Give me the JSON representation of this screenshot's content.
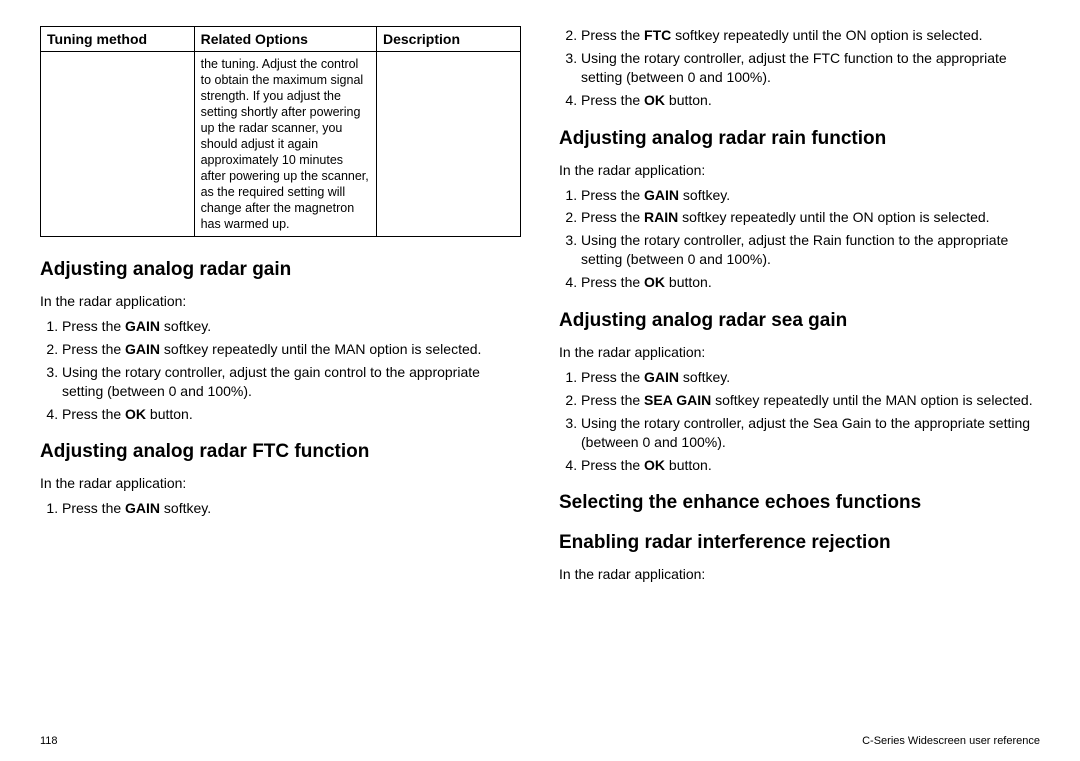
{
  "table": {
    "headers": [
      "Tuning method",
      "Related Options",
      "Description"
    ],
    "row": {
      "tuning": "",
      "options": "the tuning. Adjust the control to obtain the maximum signal strength. If you adjust the setting shortly after powering up the radar scanner, you should adjust it again approximately 10 minutes after powering up the scanner, as the required setting will change after the magnetron has warmed up.",
      "desc": ""
    }
  },
  "left": {
    "h_gain": "Adjusting analog radar gain",
    "gain_lead": "In the radar application:",
    "gain_steps": {
      "s1a": "Press the ",
      "s1b": "GAIN",
      "s1c": " softkey.",
      "s2a": "Press the ",
      "s2b": "GAIN",
      "s2c": " softkey repeatedly until the MAN option is selected.",
      "s3": "Using the rotary controller, adjust the gain control to the appropriate setting (between 0 and 100%).",
      "s4a": "Press the ",
      "s4b": "OK",
      "s4c": " button."
    },
    "h_ftc": "Adjusting analog radar FTC function",
    "ftc_lead": "In the radar application:",
    "ftc_steps": {
      "s1a": "Press the ",
      "s1b": "GAIN",
      "s1c": " softkey."
    }
  },
  "right": {
    "ftc_cont": {
      "s2a": "Press the ",
      "s2b": "FTC",
      "s2c": " softkey repeatedly until the ON option is selected.",
      "s3": "Using the rotary controller, adjust the FTC function to the appropriate setting (between 0 and 100%).",
      "s4a": "Press the ",
      "s4b": "OK",
      "s4c": " button."
    },
    "h_rain": "Adjusting analog radar rain function",
    "rain_lead": "In the radar application:",
    "rain_steps": {
      "s1a": "Press the ",
      "s1b": "GAIN",
      "s1c": " softkey.",
      "s2a": "Press the ",
      "s2b": "RAIN",
      "s2c": " softkey repeatedly until the ON option is selected.",
      "s3": "Using the rotary controller, adjust the Rain function to the appropriate setting (between 0 and 100%).",
      "s4a": "Press the ",
      "s4b": "OK",
      "s4c": " button."
    },
    "h_sea": "Adjusting analog radar sea gain",
    "sea_lead": "In the radar application:",
    "sea_steps": {
      "s1a": "Press the ",
      "s1b": "GAIN",
      "s1c": " softkey.",
      "s2a": "Press the ",
      "s2b": "SEA GAIN",
      "s2c": " softkey repeatedly until the MAN option is selected.",
      "s3": "Using the rotary controller, adjust the Sea Gain to the appropriate setting (between 0 and 100%).",
      "s4a": "Press the ",
      "s4b": "OK",
      "s4c": " button."
    },
    "h_enhance": "Selecting the enhance echoes functions",
    "h_interf": "Enabling radar interference rejection",
    "interf_lead": "In the radar application:"
  },
  "footer": {
    "page": "118",
    "ref": "C-Series Widescreen user reference"
  }
}
